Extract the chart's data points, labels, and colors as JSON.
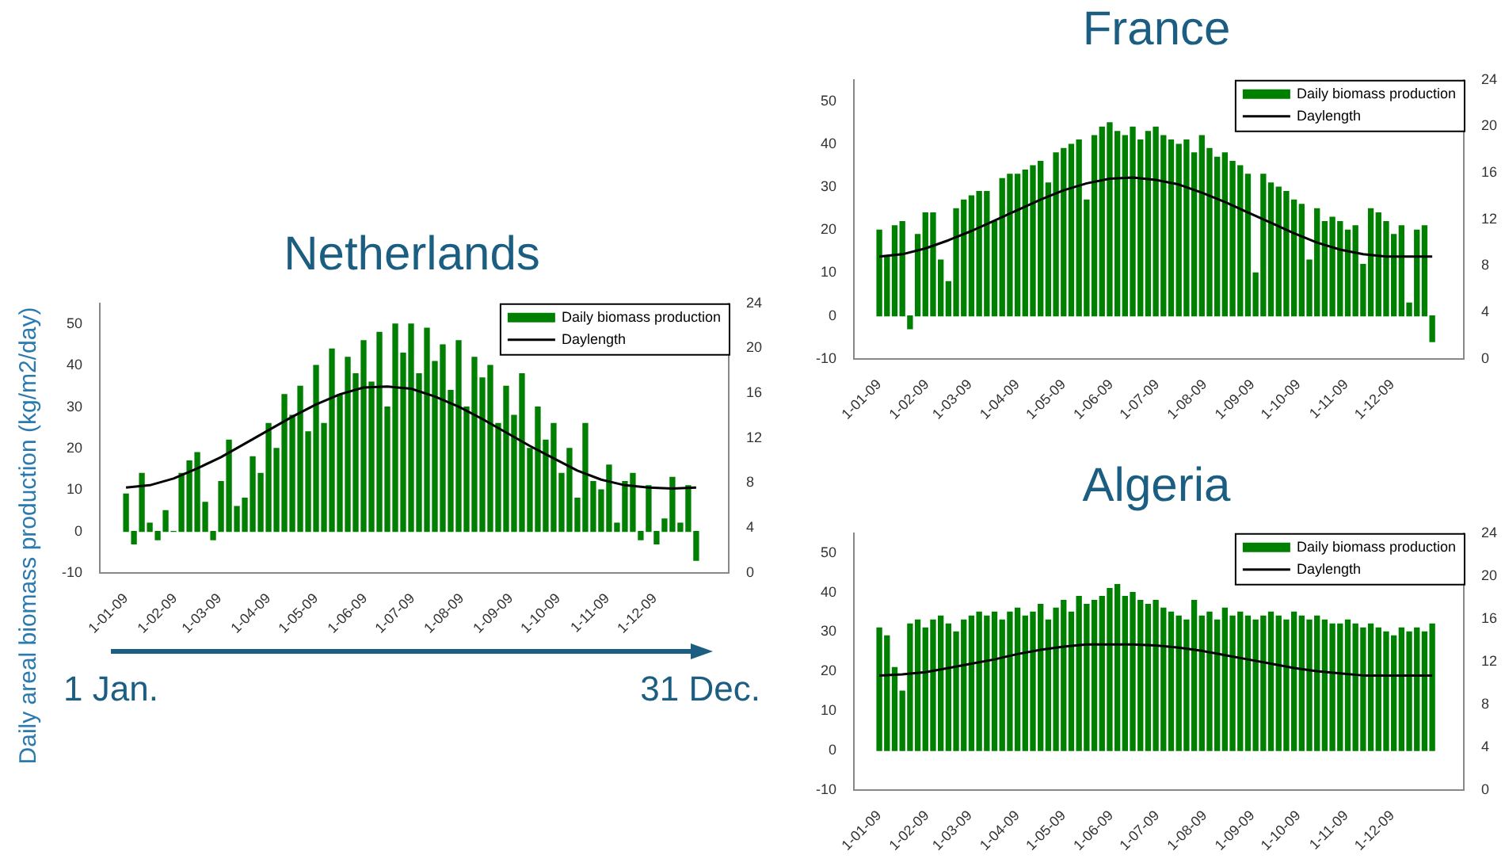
{
  "chart_data": [
    {
      "type": "bar",
      "title": "Netherlands",
      "ylabel": "Daily areal biomass production (kg/m2/day)",
      "annotations": [
        "1 Jan.",
        "31 Dec."
      ],
      "legend": "top right",
      "x": [
        "2009-01-01",
        "2009-01-06",
        "2009-01-11",
        "2009-01-16",
        "2009-01-21",
        "2009-01-26",
        "2009-01-31",
        "2009-02-05",
        "2009-02-10",
        "2009-02-15",
        "2009-02-20",
        "2009-02-25",
        "2009-03-02",
        "2009-03-07",
        "2009-03-12",
        "2009-03-17",
        "2009-03-22",
        "2009-03-27",
        "2009-04-01",
        "2009-04-06",
        "2009-04-11",
        "2009-04-16",
        "2009-04-21",
        "2009-04-26",
        "2009-05-01",
        "2009-05-06",
        "2009-05-11",
        "2009-05-16",
        "2009-05-21",
        "2009-05-26",
        "2009-05-31",
        "2009-06-05",
        "2009-06-10",
        "2009-06-15",
        "2009-06-20",
        "2009-06-25",
        "2009-06-30",
        "2009-07-05",
        "2009-07-10",
        "2009-07-15",
        "2009-07-20",
        "2009-07-25",
        "2009-07-30",
        "2009-08-04",
        "2009-08-09",
        "2009-08-14",
        "2009-08-19",
        "2009-08-24",
        "2009-08-29",
        "2009-09-03",
        "2009-09-08",
        "2009-09-13",
        "2009-09-18",
        "2009-09-23",
        "2009-09-28",
        "2009-10-03",
        "2009-10-08",
        "2009-10-13",
        "2009-10-18",
        "2009-10-23",
        "2009-10-28",
        "2009-11-02",
        "2009-11-07",
        "2009-11-12",
        "2009-11-17",
        "2009-11-22",
        "2009-11-27",
        "2009-12-02",
        "2009-12-07",
        "2009-12-12",
        "2009-12-17",
        "2009-12-22",
        "2009-12-27"
      ],
      "xlim": [
        "2009-01-01",
        "2009-12-31"
      ],
      "xticks": [
        {
          "value": "2009-01-01",
          "label": "1-01-09"
        },
        {
          "value": "2009-02-01",
          "label": "1-02-09"
        },
        {
          "value": "2009-03-01",
          "label": "1-03-09"
        },
        {
          "value": "2009-04-01",
          "label": "1-04-09"
        },
        {
          "value": "2009-05-01",
          "label": "1-05-09"
        },
        {
          "value": "2009-06-01",
          "label": "1-06-09"
        },
        {
          "value": "2009-07-01",
          "label": "1-07-09"
        },
        {
          "value": "2009-08-01",
          "label": "1-08-09"
        },
        {
          "value": "2009-09-01",
          "label": "1-09-09"
        },
        {
          "value": "2009-10-01",
          "label": "1-10-09"
        },
        {
          "value": "2009-11-01",
          "label": "1-11-09"
        },
        {
          "value": "2009-12-01",
          "label": "1-12-09"
        }
      ],
      "ylim": [
        -10,
        55
      ],
      "yticks": [
        -10,
        0,
        10,
        20,
        30,
        40,
        50
      ],
      "y2lim": [
        0,
        24
      ],
      "y2ticks": [
        0,
        4,
        8,
        12,
        16,
        20,
        24
      ],
      "series": [
        {
          "name": "Daily biomass production",
          "color": "#008000",
          "values": [
            9,
            -3,
            14,
            2,
            -2,
            5,
            0,
            14,
            17,
            19,
            7,
            -2,
            12,
            22,
            6,
            8,
            18,
            14,
            26,
            20,
            33,
            28,
            35,
            24,
            40,
            26,
            44,
            33,
            42,
            38,
            46,
            36,
            48,
            30,
            50,
            43,
            50,
            38,
            49,
            41,
            45,
            34,
            46,
            30,
            42,
            37,
            40,
            26,
            35,
            28,
            38,
            20,
            30,
            22,
            26,
            14,
            20,
            8,
            26,
            12,
            10,
            16,
            2,
            12,
            14,
            -2,
            11,
            -3,
            3,
            13,
            2,
            11,
            -7
          ]
        },
        {
          "name": "Daylength",
          "type": "line",
          "axis": "y2",
          "color": "#000000",
          "x": [
            "2009-01-01",
            "2009-01-16",
            "2009-01-31",
            "2009-02-15",
            "2009-03-02",
            "2009-03-17",
            "2009-04-01",
            "2009-04-16",
            "2009-05-01",
            "2009-05-16",
            "2009-05-31",
            "2009-06-15",
            "2009-06-30",
            "2009-07-15",
            "2009-07-30",
            "2009-08-14",
            "2009-08-29",
            "2009-09-13",
            "2009-09-28",
            "2009-10-13",
            "2009-10-28",
            "2009-11-12",
            "2009-11-27",
            "2009-12-12",
            "2009-12-27"
          ],
          "values": [
            7.6,
            7.8,
            8.4,
            9.3,
            10.3,
            11.5,
            12.7,
            13.9,
            15.0,
            15.9,
            16.5,
            16.6,
            16.4,
            15.7,
            14.8,
            13.7,
            12.5,
            11.3,
            10.2,
            9.1,
            8.3,
            7.8,
            7.6,
            7.5,
            7.6
          ]
        }
      ]
    },
    {
      "type": "bar",
      "title": "France",
      "legend": "top right",
      "x": [
        "2009-01-01",
        "2009-01-06",
        "2009-01-11",
        "2009-01-16",
        "2009-01-21",
        "2009-01-26",
        "2009-01-31",
        "2009-02-05",
        "2009-02-10",
        "2009-02-15",
        "2009-02-20",
        "2009-02-25",
        "2009-03-02",
        "2009-03-07",
        "2009-03-12",
        "2009-03-17",
        "2009-03-22",
        "2009-03-27",
        "2009-04-01",
        "2009-04-06",
        "2009-04-11",
        "2009-04-16",
        "2009-04-21",
        "2009-04-26",
        "2009-05-01",
        "2009-05-06",
        "2009-05-11",
        "2009-05-16",
        "2009-05-21",
        "2009-05-26",
        "2009-05-31",
        "2009-06-05",
        "2009-06-10",
        "2009-06-15",
        "2009-06-20",
        "2009-06-25",
        "2009-06-30",
        "2009-07-05",
        "2009-07-10",
        "2009-07-15",
        "2009-07-20",
        "2009-07-25",
        "2009-07-30",
        "2009-08-04",
        "2009-08-09",
        "2009-08-14",
        "2009-08-19",
        "2009-08-24",
        "2009-08-29",
        "2009-09-03",
        "2009-09-08",
        "2009-09-13",
        "2009-09-18",
        "2009-09-23",
        "2009-09-28",
        "2009-10-03",
        "2009-10-08",
        "2009-10-13",
        "2009-10-18",
        "2009-10-23",
        "2009-10-28",
        "2009-11-02",
        "2009-11-07",
        "2009-11-12",
        "2009-11-17",
        "2009-11-22",
        "2009-11-27",
        "2009-12-02",
        "2009-12-07",
        "2009-12-12",
        "2009-12-17",
        "2009-12-22",
        "2009-12-27"
      ],
      "xlim": [
        "2009-01-01",
        "2009-12-31"
      ],
      "xticks": [
        {
          "value": "2009-01-01",
          "label": "1-01-09"
        },
        {
          "value": "2009-02-01",
          "label": "1-02-09"
        },
        {
          "value": "2009-03-01",
          "label": "1-03-09"
        },
        {
          "value": "2009-04-01",
          "label": "1-04-09"
        },
        {
          "value": "2009-05-01",
          "label": "1-05-09"
        },
        {
          "value": "2009-06-01",
          "label": "1-06-09"
        },
        {
          "value": "2009-07-01",
          "label": "1-07-09"
        },
        {
          "value": "2009-08-01",
          "label": "1-08-09"
        },
        {
          "value": "2009-09-01",
          "label": "1-09-09"
        },
        {
          "value": "2009-10-01",
          "label": "1-10-09"
        },
        {
          "value": "2009-11-01",
          "label": "1-11-09"
        },
        {
          "value": "2009-12-01",
          "label": "1-12-09"
        }
      ],
      "ylim": [
        -10,
        55
      ],
      "yticks": [
        -10,
        0,
        10,
        20,
        30,
        40,
        50
      ],
      "y2lim": [
        0,
        24
      ],
      "y2ticks": [
        0,
        4,
        8,
        12,
        16,
        20,
        24
      ],
      "series": [
        {
          "name": "Daily biomass production",
          "color": "#008000",
          "values": [
            20,
            14,
            21,
            22,
            -3,
            19,
            24,
            24,
            13,
            8,
            25,
            27,
            28,
            29,
            29,
            22,
            32,
            33,
            33,
            34,
            35,
            36,
            31,
            38,
            39,
            40,
            41,
            27,
            42,
            44,
            45,
            43,
            42,
            44,
            41,
            43,
            44,
            42,
            41,
            40,
            41,
            38,
            42,
            39,
            37,
            38,
            36,
            35,
            33,
            10,
            33,
            31,
            30,
            29,
            27,
            26,
            13,
            25,
            22,
            23,
            22,
            20,
            21,
            12,
            25,
            24,
            22,
            19,
            21,
            3,
            20,
            21,
            -6
          ]
        },
        {
          "name": "Daylength",
          "type": "line",
          "axis": "y2",
          "color": "#000000",
          "x": [
            "2009-01-01",
            "2009-01-16",
            "2009-01-31",
            "2009-02-15",
            "2009-03-02",
            "2009-03-17",
            "2009-04-01",
            "2009-04-16",
            "2009-05-01",
            "2009-05-16",
            "2009-05-31",
            "2009-06-15",
            "2009-06-30",
            "2009-07-15",
            "2009-07-30",
            "2009-08-14",
            "2009-08-29",
            "2009-09-13",
            "2009-09-28",
            "2009-10-13",
            "2009-10-28",
            "2009-11-12",
            "2009-11-27",
            "2009-12-12",
            "2009-12-27"
          ],
          "values": [
            8.8,
            9.0,
            9.5,
            10.2,
            11.0,
            11.9,
            12.8,
            13.7,
            14.5,
            15.1,
            15.5,
            15.6,
            15.4,
            15.0,
            14.3,
            13.5,
            12.6,
            11.7,
            10.8,
            10.0,
            9.4,
            9.0,
            8.8,
            8.8,
            8.8
          ]
        }
      ]
    },
    {
      "type": "bar",
      "title": "Algeria",
      "legend": "top right",
      "x": [
        "2009-01-01",
        "2009-01-06",
        "2009-01-11",
        "2009-01-16",
        "2009-01-21",
        "2009-01-26",
        "2009-01-31",
        "2009-02-05",
        "2009-02-10",
        "2009-02-15",
        "2009-02-20",
        "2009-02-25",
        "2009-03-02",
        "2009-03-07",
        "2009-03-12",
        "2009-03-17",
        "2009-03-22",
        "2009-03-27",
        "2009-04-01",
        "2009-04-06",
        "2009-04-11",
        "2009-04-16",
        "2009-04-21",
        "2009-04-26",
        "2009-05-01",
        "2009-05-06",
        "2009-05-11",
        "2009-05-16",
        "2009-05-21",
        "2009-05-26",
        "2009-05-31",
        "2009-06-05",
        "2009-06-10",
        "2009-06-15",
        "2009-06-20",
        "2009-06-25",
        "2009-06-30",
        "2009-07-05",
        "2009-07-10",
        "2009-07-15",
        "2009-07-20",
        "2009-07-25",
        "2009-07-30",
        "2009-08-04",
        "2009-08-09",
        "2009-08-14",
        "2009-08-19",
        "2009-08-24",
        "2009-08-29",
        "2009-09-03",
        "2009-09-08",
        "2009-09-13",
        "2009-09-18",
        "2009-09-23",
        "2009-09-28",
        "2009-10-03",
        "2009-10-08",
        "2009-10-13",
        "2009-10-18",
        "2009-10-23",
        "2009-10-28",
        "2009-11-02",
        "2009-11-07",
        "2009-11-12",
        "2009-11-17",
        "2009-11-22",
        "2009-11-27",
        "2009-12-02",
        "2009-12-07",
        "2009-12-12",
        "2009-12-17",
        "2009-12-22",
        "2009-12-27"
      ],
      "xlim": [
        "2009-01-01",
        "2009-12-31"
      ],
      "xticks": [
        {
          "value": "2009-01-01",
          "label": "1-01-09"
        },
        {
          "value": "2009-02-01",
          "label": "1-02-09"
        },
        {
          "value": "2009-03-01",
          "label": "1-03-09"
        },
        {
          "value": "2009-04-01",
          "label": "1-04-09"
        },
        {
          "value": "2009-05-01",
          "label": "1-05-09"
        },
        {
          "value": "2009-06-01",
          "label": "1-06-09"
        },
        {
          "value": "2009-07-01",
          "label": "1-07-09"
        },
        {
          "value": "2009-08-01",
          "label": "1-08-09"
        },
        {
          "value": "2009-09-01",
          "label": "1-09-09"
        },
        {
          "value": "2009-10-01",
          "label": "1-10-09"
        },
        {
          "value": "2009-11-01",
          "label": "1-11-09"
        },
        {
          "value": "2009-12-01",
          "label": "1-12-09"
        }
      ],
      "ylim": [
        -10,
        55
      ],
      "yticks": [
        -10,
        0,
        10,
        20,
        30,
        40,
        50
      ],
      "y2lim": [
        0,
        24
      ],
      "y2ticks": [
        0,
        4,
        8,
        12,
        16,
        20,
        24
      ],
      "series": [
        {
          "name": "Daily biomass production",
          "color": "#008000",
          "values": [
            31,
            29,
            21,
            15,
            32,
            33,
            31,
            33,
            34,
            32,
            30,
            33,
            34,
            35,
            34,
            35,
            33,
            35,
            36,
            34,
            35,
            37,
            33,
            36,
            38,
            35,
            39,
            37,
            38,
            39,
            41,
            42,
            39,
            40,
            38,
            37,
            38,
            36,
            35,
            34,
            33,
            38,
            34,
            35,
            33,
            36,
            34,
            35,
            34,
            33,
            34,
            35,
            34,
            33,
            35,
            34,
            33,
            34,
            33,
            32,
            32,
            33,
            32,
            31,
            32,
            31,
            30,
            29,
            31,
            30,
            31,
            30,
            32
          ]
        },
        {
          "name": "Daylength",
          "type": "line",
          "axis": "y2",
          "color": "#000000",
          "x": [
            "2009-01-01",
            "2009-01-16",
            "2009-01-31",
            "2009-02-15",
            "2009-03-02",
            "2009-03-17",
            "2009-04-01",
            "2009-04-16",
            "2009-05-01",
            "2009-05-16",
            "2009-05-31",
            "2009-06-15",
            "2009-06-30",
            "2009-07-15",
            "2009-07-30",
            "2009-08-14",
            "2009-08-29",
            "2009-09-13",
            "2009-09-28",
            "2009-10-13",
            "2009-10-28",
            "2009-11-12",
            "2009-11-27",
            "2009-12-12",
            "2009-12-27"
          ],
          "values": [
            10.7,
            10.8,
            11.0,
            11.4,
            11.8,
            12.2,
            12.7,
            13.1,
            13.4,
            13.6,
            13.6,
            13.6,
            13.5,
            13.3,
            13.0,
            12.6,
            12.2,
            11.8,
            11.4,
            11.1,
            10.9,
            10.7,
            10.7,
            10.7,
            10.7
          ]
        }
      ]
    }
  ]
}
